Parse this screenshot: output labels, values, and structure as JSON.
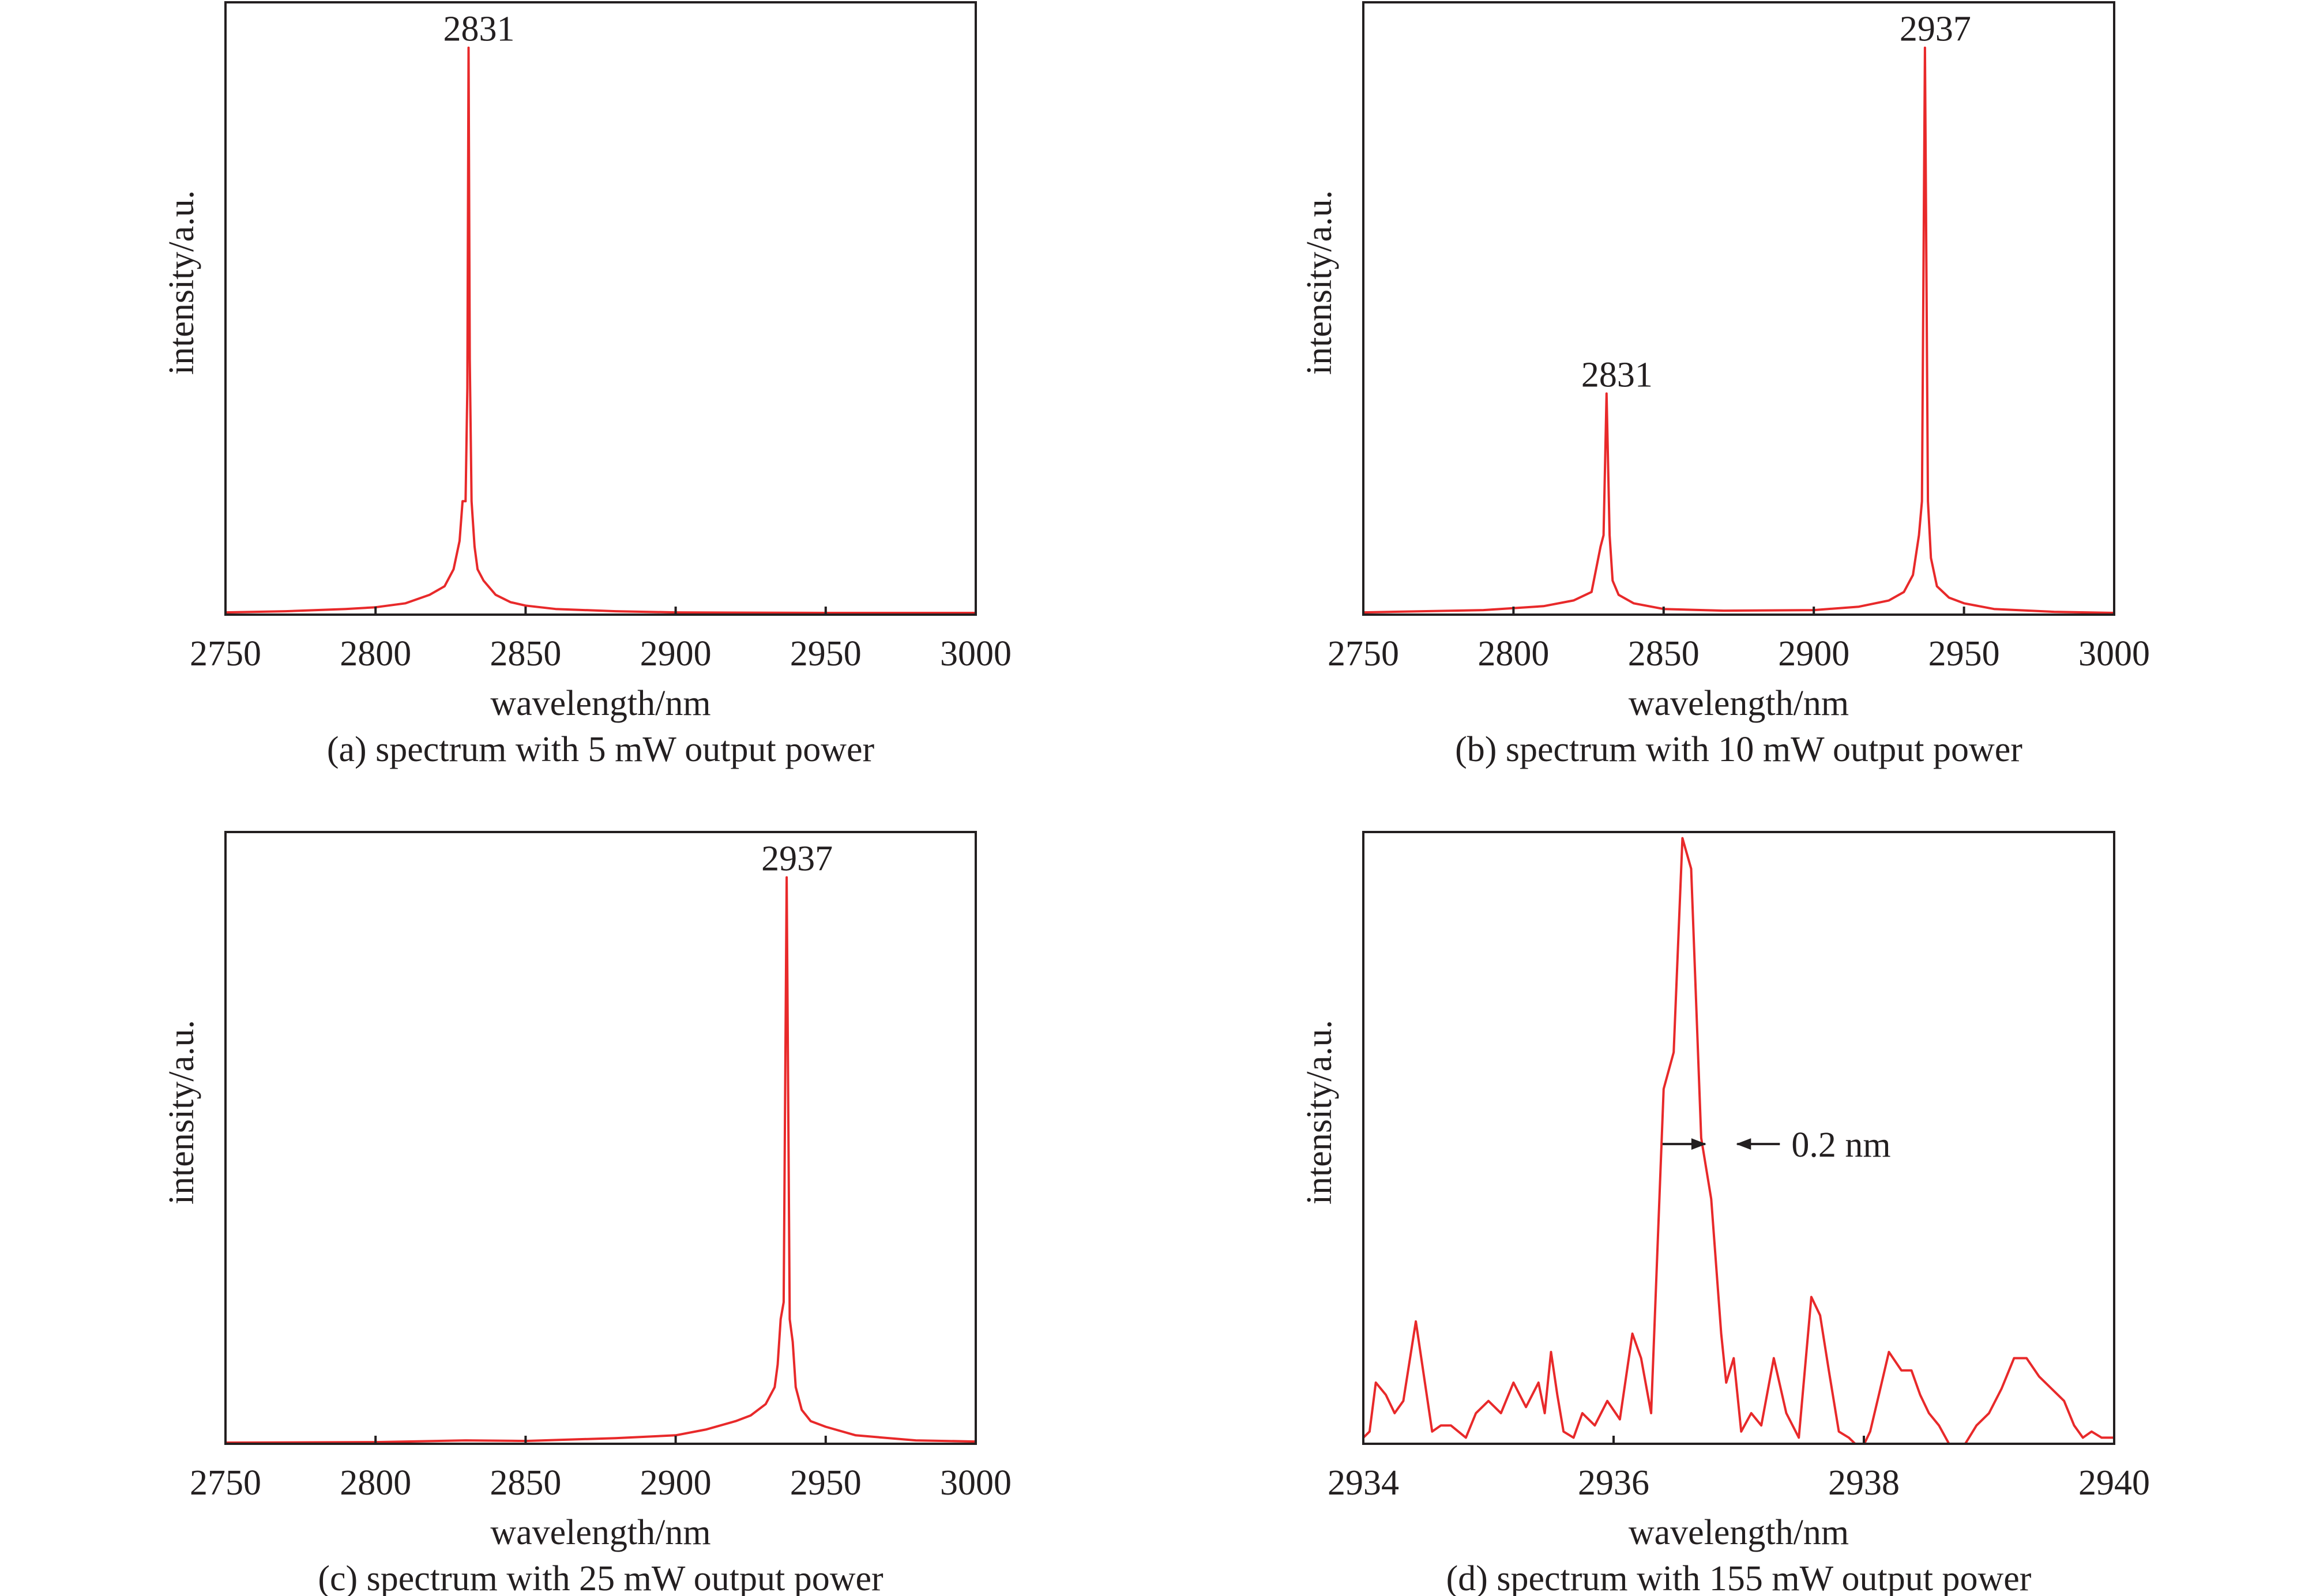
{
  "colors": {
    "trace": "#e8292a",
    "axis": "#231f20"
  },
  "chart_data": [
    {
      "type": "line",
      "caption": "(a) spectrum with 5 mW output power",
      "xlabel": "wavelength/nm",
      "ylabel": "intensity/a.u.",
      "xlim": [
        2750,
        3000
      ],
      "xticks": [
        "2750",
        "2800",
        "2850",
        "2900",
        "2950",
        "3000"
      ],
      "ylim": [
        0,
        1.08
      ],
      "peaks": [
        {
          "x": 2831,
          "y": 1.0,
          "label": "2831"
        }
      ],
      "series": [
        {
          "x": [
            2750,
            2770,
            2790,
            2800,
            2810,
            2818,
            2823,
            2826,
            2828,
            2829,
            2830,
            2830.6,
            2831,
            2831.4,
            2832,
            2833,
            2834,
            2836,
            2840,
            2845,
            2850,
            2860,
            2880,
            2900,
            2950,
            3000
          ],
          "y": [
            0.004,
            0.006,
            0.01,
            0.013,
            0.02,
            0.035,
            0.05,
            0.08,
            0.13,
            0.2,
            0.2,
            0.4,
            1.0,
            0.45,
            0.2,
            0.12,
            0.08,
            0.06,
            0.035,
            0.022,
            0.016,
            0.01,
            0.006,
            0.004,
            0.003,
            0.003
          ]
        }
      ]
    },
    {
      "type": "line",
      "caption": "(b) spectrum with 10 mW output power",
      "xlabel": "wavelength/nm",
      "ylabel": "intensity/a.u.",
      "xlim": [
        2750,
        3000
      ],
      "xticks": [
        "2750",
        "2800",
        "2850",
        "2900",
        "2950",
        "3000"
      ],
      "ylim": [
        0,
        1.08
      ],
      "peaks": [
        {
          "x": 2831,
          "y": 0.39,
          "label": "2831"
        },
        {
          "x": 2937,
          "y": 1.0,
          "label": "2937"
        }
      ],
      "series": [
        {
          "x": [
            2750,
            2790,
            2810,
            2820,
            2826,
            2829,
            2830,
            2831,
            2832,
            2833,
            2835,
            2840,
            2850,
            2870,
            2900,
            2915,
            2925,
            2930,
            2933,
            2935,
            2936,
            2937,
            2938,
            2939,
            2941,
            2945,
            2950,
            2960,
            2980,
            3000
          ],
          "y": [
            0.004,
            0.008,
            0.015,
            0.025,
            0.04,
            0.12,
            0.14,
            0.39,
            0.14,
            0.06,
            0.035,
            0.02,
            0.01,
            0.007,
            0.008,
            0.014,
            0.025,
            0.04,
            0.07,
            0.14,
            0.2,
            1.0,
            0.2,
            0.1,
            0.05,
            0.03,
            0.02,
            0.01,
            0.005,
            0.003
          ]
        }
      ]
    },
    {
      "type": "line",
      "caption": "(c) spectrum with 25 mW output power",
      "xlabel": "wavelength/nm",
      "ylabel": "intensity/a.u.",
      "xlim": [
        2750,
        3000
      ],
      "xticks": [
        "2750",
        "2800",
        "2850",
        "2900",
        "2950",
        "3000"
      ],
      "ylim": [
        0,
        1.08
      ],
      "peaks": [
        {
          "x": 2937,
          "y": 1.0,
          "label": "2937"
        }
      ],
      "series": [
        {
          "x": [
            2750,
            2800,
            2830,
            2850,
            2880,
            2900,
            2910,
            2920,
            2925,
            2930,
            2933,
            2934,
            2935,
            2936,
            2937,
            2938,
            2939,
            2940,
            2942,
            2945,
            2950,
            2960,
            2980,
            3000
          ],
          "y": [
            0.002,
            0.003,
            0.006,
            0.005,
            0.01,
            0.015,
            0.025,
            0.04,
            0.05,
            0.07,
            0.1,
            0.14,
            0.22,
            0.25,
            1.0,
            0.22,
            0.18,
            0.1,
            0.06,
            0.04,
            0.03,
            0.015,
            0.006,
            0.004
          ]
        }
      ]
    },
    {
      "type": "line",
      "caption": "(d) spectrum with 155 mW output power",
      "xlabel": "wavelength/nm",
      "ylabel": "intensity/a.u.",
      "xlim": [
        2934,
        2940
      ],
      "xticks": [
        "2934",
        "2936",
        "2938",
        "2940"
      ],
      "ylim": [
        0,
        1.0
      ],
      "annotations": [
        {
          "text": "0.2 nm",
          "x_left": 2936.76,
          "x_right": 2936.96,
          "y": 0.49
        }
      ],
      "series": [
        {
          "x": [
            2934.0,
            2934.05,
            2934.1,
            2934.18,
            2934.25,
            2934.32,
            2934.42,
            2934.55,
            2934.62,
            2934.7,
            2934.82,
            2934.9,
            2935.0,
            2935.1,
            2935.2,
            2935.3,
            2935.4,
            2935.45,
            2935.5,
            2935.55,
            2935.6,
            2935.68,
            2935.75,
            2935.85,
            2935.95,
            2936.05,
            2936.15,
            2936.22,
            2936.3,
            2936.4,
            2936.48,
            2936.55,
            2936.62,
            2936.7,
            2936.78,
            2936.86,
            2936.9,
            2936.96,
            2937.02,
            2937.1,
            2937.18,
            2937.28,
            2937.38,
            2937.48,
            2937.58,
            2937.65,
            2937.72,
            2937.8,
            2937.88,
            2937.98,
            2938.05,
            2938.12,
            2938.2,
            2938.3,
            2938.38,
            2938.45,
            2938.52,
            2938.6,
            2938.68,
            2938.78,
            2938.9,
            2939.0,
            2939.1,
            2939.2,
            2939.3,
            2939.4,
            2939.5,
            2939.6,
            2939.68,
            2939.75,
            2939.82,
            2939.9,
            2940.0
          ],
          "y": [
            0.01,
            0.02,
            0.1,
            0.08,
            0.05,
            0.07,
            0.2,
            0.02,
            0.03,
            0.03,
            0.01,
            0.05,
            0.07,
            0.05,
            0.1,
            0.06,
            0.1,
            0.05,
            0.15,
            0.08,
            0.02,
            0.01,
            0.05,
            0.03,
            0.07,
            0.04,
            0.18,
            0.14,
            0.05,
            0.58,
            0.64,
            0.99,
            0.94,
            0.5,
            0.4,
            0.18,
            0.1,
            0.14,
            0.02,
            0.05,
            0.03,
            0.14,
            0.05,
            0.01,
            0.24,
            0.21,
            0.12,
            0.02,
            0.01,
            -0.01,
            0.02,
            0.08,
            0.15,
            0.12,
            0.12,
            0.08,
            0.05,
            0.03,
            0.0,
            -0.02,
            0.03,
            0.05,
            0.09,
            0.14,
            0.14,
            0.11,
            0.09,
            0.07,
            0.03,
            0.01,
            0.02,
            0.01,
            0.01
          ]
        }
      ]
    }
  ]
}
